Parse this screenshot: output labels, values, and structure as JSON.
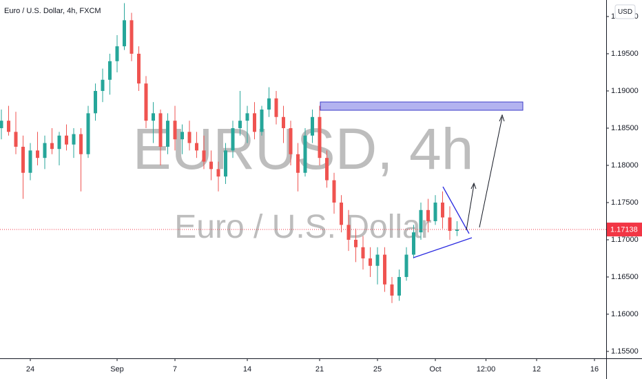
{
  "chart_data": {
    "type": "candlestick",
    "title": "Euro / U.S. Dollar, 4h, FXCM",
    "watermark": "EURUSD, 4h",
    "watermark_subtitle": "Euro / U.S. Dollar",
    "currency": "USD",
    "up_color": "#26a69a",
    "down_color": "#ef5350",
    "ohlc": [
      [
        1.185,
        1.1875,
        1.1835,
        1.186
      ],
      [
        1.186,
        1.188,
        1.184,
        1.1845
      ],
      [
        1.1845,
        1.1872,
        1.1815,
        1.1825
      ],
      [
        1.1825,
        1.184,
        1.1755,
        1.179
      ],
      [
        1.179,
        1.183,
        1.178,
        1.182
      ],
      [
        1.182,
        1.1845,
        1.18,
        1.181
      ],
      [
        1.181,
        1.184,
        1.1795,
        1.183
      ],
      [
        1.183,
        1.185,
        1.1815,
        1.1822
      ],
      [
        1.1822,
        1.1845,
        1.18,
        1.184
      ],
      [
        1.184,
        1.1855,
        1.182,
        1.1828
      ],
      [
        1.1828,
        1.185,
        1.181,
        1.1842
      ],
      [
        1.1842,
        1.185,
        1.1765,
        1.1815
      ],
      [
        1.1815,
        1.188,
        1.181,
        1.187
      ],
      [
        1.187,
        1.191,
        1.186,
        1.19
      ],
      [
        1.19,
        1.193,
        1.1885,
        1.1915
      ],
      [
        1.1915,
        1.195,
        1.1895,
        1.194
      ],
      [
        1.194,
        1.1975,
        1.1925,
        1.196
      ],
      [
        1.196,
        1.2018,
        1.1955,
        1.1995
      ],
      [
        1.1995,
        1.2005,
        1.194,
        1.195
      ],
      [
        1.195,
        1.196,
        1.19,
        1.191
      ],
      [
        1.191,
        1.192,
        1.185,
        1.186
      ],
      [
        1.186,
        1.1885,
        1.183,
        1.187
      ],
      [
        1.187,
        1.1875,
        1.18,
        1.1825
      ],
      [
        1.1825,
        1.187,
        1.1815,
        1.186
      ],
      [
        1.186,
        1.188,
        1.182,
        1.1835
      ],
      [
        1.1835,
        1.1855,
        1.1815,
        1.1845
      ],
      [
        1.1845,
        1.186,
        1.182,
        1.183
      ],
      [
        1.183,
        1.1845,
        1.181,
        1.182
      ],
      [
        1.182,
        1.184,
        1.1795,
        1.1805
      ],
      [
        1.1805,
        1.182,
        1.178,
        1.1795
      ],
      [
        1.1795,
        1.1805,
        1.1765,
        1.1785
      ],
      [
        1.1785,
        1.183,
        1.1775,
        1.182
      ],
      [
        1.182,
        1.186,
        1.181,
        1.185
      ],
      [
        1.185,
        1.19,
        1.184,
        1.186
      ],
      [
        1.186,
        1.188,
        1.183,
        1.187
      ],
      [
        1.187,
        1.1885,
        1.1835,
        1.1845
      ],
      [
        1.1845,
        1.188,
        1.184,
        1.1875
      ],
      [
        1.1875,
        1.1905,
        1.1865,
        1.189
      ],
      [
        1.189,
        1.19,
        1.1855,
        1.1865
      ],
      [
        1.1865,
        1.188,
        1.183,
        1.185
      ],
      [
        1.185,
        1.186,
        1.18,
        1.1815
      ],
      [
        1.1815,
        1.183,
        1.1765,
        1.179
      ],
      [
        1.179,
        1.185,
        1.1785,
        1.184
      ],
      [
        1.184,
        1.1875,
        1.183,
        1.1865
      ],
      [
        1.1865,
        1.188,
        1.18,
        1.181
      ],
      [
        1.181,
        1.182,
        1.177,
        1.178
      ],
      [
        1.178,
        1.179,
        1.1735,
        1.175
      ],
      [
        1.175,
        1.176,
        1.171,
        1.172
      ],
      [
        1.172,
        1.174,
        1.1685,
        1.17
      ],
      [
        1.17,
        1.1715,
        1.167,
        1.169
      ],
      [
        1.169,
        1.1705,
        1.166,
        1.1675
      ],
      [
        1.1675,
        1.169,
        1.165,
        1.1665
      ],
      [
        1.1665,
        1.169,
        1.164,
        1.168
      ],
      [
        1.168,
        1.169,
        1.163,
        1.164
      ],
      [
        1.164,
        1.165,
        1.1615,
        1.1625
      ],
      [
        1.1625,
        1.166,
        1.1618,
        1.165
      ],
      [
        1.165,
        1.169,
        1.1645,
        1.168
      ],
      [
        1.168,
        1.172,
        1.1675,
        1.171
      ],
      [
        1.171,
        1.175,
        1.17,
        1.174
      ],
      [
        1.174,
        1.1755,
        1.171,
        1.1725
      ],
      [
        1.1725,
        1.176,
        1.172,
        1.175
      ],
      [
        1.175,
        1.1765,
        1.1715,
        1.173
      ],
      [
        1.173,
        1.1745,
        1.17,
        1.1712
      ],
      [
        1.1712,
        1.1725,
        1.1705,
        1.17138
      ]
    ],
    "xlim": [
      -0.19,
      83.62
    ],
    "xticks": [
      {
        "value": 4,
        "label": "24"
      },
      {
        "value": 16,
        "label": "Sep"
      },
      {
        "value": 24,
        "label": "7"
      },
      {
        "value": 34,
        "label": "14"
      },
      {
        "value": 44,
        "label": "21"
      },
      {
        "value": 52,
        "label": "25"
      },
      {
        "value": 60,
        "label": "Oct"
      },
      {
        "value": 67,
        "label": "12:00"
      },
      {
        "value": 74,
        "label": "12"
      },
      {
        "value": 82,
        "label": "16"
      }
    ],
    "ylim": [
      1.15407,
      1.20222
    ],
    "yticks": [
      {
        "value": 1.155,
        "label": "1.15500"
      },
      {
        "value": 1.16,
        "label": "1.16000"
      },
      {
        "value": 1.165,
        "label": "1.16500"
      },
      {
        "value": 1.17,
        "label": "1.17000"
      },
      {
        "value": 1.175,
        "label": "1.17500"
      },
      {
        "value": 1.18,
        "label": "1.18000"
      },
      {
        "value": 1.185,
        "label": "1.18500"
      },
      {
        "value": 1.19,
        "label": "1.19000"
      },
      {
        "value": 1.195,
        "label": "1.19500"
      },
      {
        "value": 1.2,
        "label": "1.20000"
      }
    ],
    "last_price": 1.17138,
    "last_price_color": "#f23645"
  }
}
